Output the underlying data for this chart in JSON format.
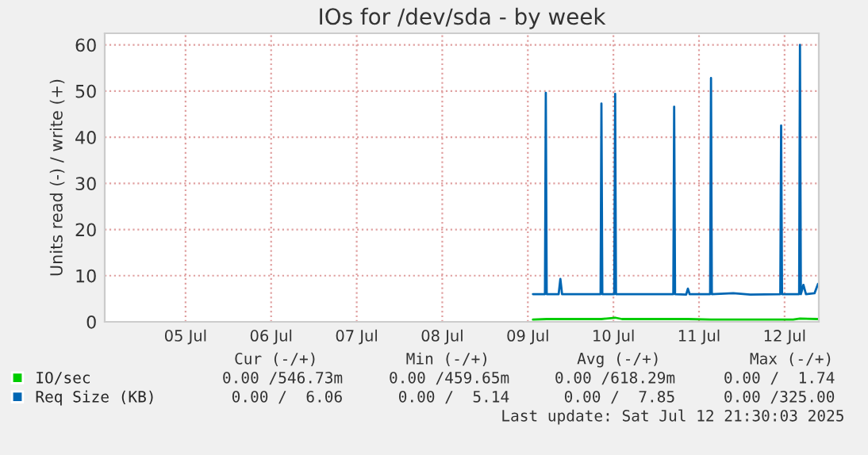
{
  "chart_data": {
    "type": "line",
    "title": "IOs for /dev/sda - by week",
    "ylabel": "Units read (-) / write (+)",
    "xlim": [
      "2025-07-04T13:20",
      "2025-07-12T21:36"
    ],
    "ylim": [
      0,
      62.5
    ],
    "xticks": [
      {
        "value": "2025-07-05T12:00",
        "label": "05 Jul"
      },
      {
        "value": "2025-07-06T12:00",
        "label": "06 Jul"
      },
      {
        "value": "2025-07-07T12:00",
        "label": "07 Jul"
      },
      {
        "value": "2025-07-08T12:00",
        "label": "08 Jul"
      },
      {
        "value": "2025-07-09T12:00",
        "label": "09 Jul"
      },
      {
        "value": "2025-07-10T12:00",
        "label": "10 Jul"
      },
      {
        "value": "2025-07-11T12:00",
        "label": "11 Jul"
      },
      {
        "value": "2025-07-12T12:00",
        "label": "12 Jul"
      }
    ],
    "yticks": [
      0,
      10,
      20,
      30,
      40,
      50,
      60
    ],
    "grid": true,
    "legend": "bottom left",
    "series": [
      {
        "name": "IO/sec",
        "color": "#00cc00",
        "x": [
          "2025-07-09T13:26",
          "2025-07-09T17:17",
          "2025-07-10T08:38",
          "2025-07-10T12:29",
          "2025-07-10T14:24",
          "2025-07-11T08:53",
          "2025-07-11T15:22",
          "2025-07-12T14:24",
          "2025-07-12T16:19",
          "2025-07-12T21:22"
        ],
        "values": [
          0.5,
          0.6,
          0.6,
          0.9,
          0.6,
          0.6,
          0.5,
          0.5,
          0.7,
          0.6
        ]
      },
      {
        "name": "Req Size (KB)",
        "color": "#0066b3",
        "x": [
          "2025-07-09T13:26",
          "2025-07-09T16:48",
          "2025-07-09T17:02",
          "2025-07-09T17:17",
          "2025-07-09T20:38",
          "2025-07-09T21:07",
          "2025-07-09T21:36",
          "2025-07-10T08:24",
          "2025-07-10T08:38",
          "2025-07-10T08:53",
          "2025-07-10T12:14",
          "2025-07-10T12:29",
          "2025-07-10T12:43",
          "2025-07-11T04:48",
          "2025-07-11T05:02",
          "2025-07-11T05:17",
          "2025-07-11T08:24",
          "2025-07-11T08:53",
          "2025-07-11T09:22",
          "2025-07-11T15:07",
          "2025-07-11T15:22",
          "2025-07-11T15:36",
          "2025-07-11T21:36",
          "2025-07-12T02:24",
          "2025-07-12T10:48",
          "2025-07-12T11:02",
          "2025-07-12T11:17",
          "2025-07-12T16:05",
          "2025-07-12T16:19",
          "2025-07-12T16:34",
          "2025-07-12T17:17",
          "2025-07-12T18:00",
          "2025-07-12T20:24",
          "2025-07-12T21:22"
        ],
        "values": [
          6.0,
          6.0,
          49.6,
          6.0,
          6.0,
          9.3,
          6.0,
          6.0,
          47.3,
          6.0,
          6.0,
          49.4,
          6.0,
          6.0,
          46.6,
          6.0,
          5.9,
          7.2,
          6.0,
          6.0,
          52.8,
          6.0,
          6.2,
          5.9,
          6.0,
          42.5,
          6.0,
          6.0,
          60,
          6.0,
          8.0,
          6.0,
          6.2,
          8.2
        ]
      }
    ],
    "annotations": [
      "Cur (-/+)",
      "Min (-/+)",
      "Avg (-/+)",
      "Max (-/+)",
      "0.00 /546.73m",
      "0.00 /459.65m",
      "0.00 /618.29m",
      "0.00 /  1.74",
      "0.00 /  6.06",
      "0.00 /  5.14",
      "0.00 /  7.85",
      "0.00 /325.00",
      "Last update: Sat Jul 12 21:30:03 2025"
    ]
  }
}
